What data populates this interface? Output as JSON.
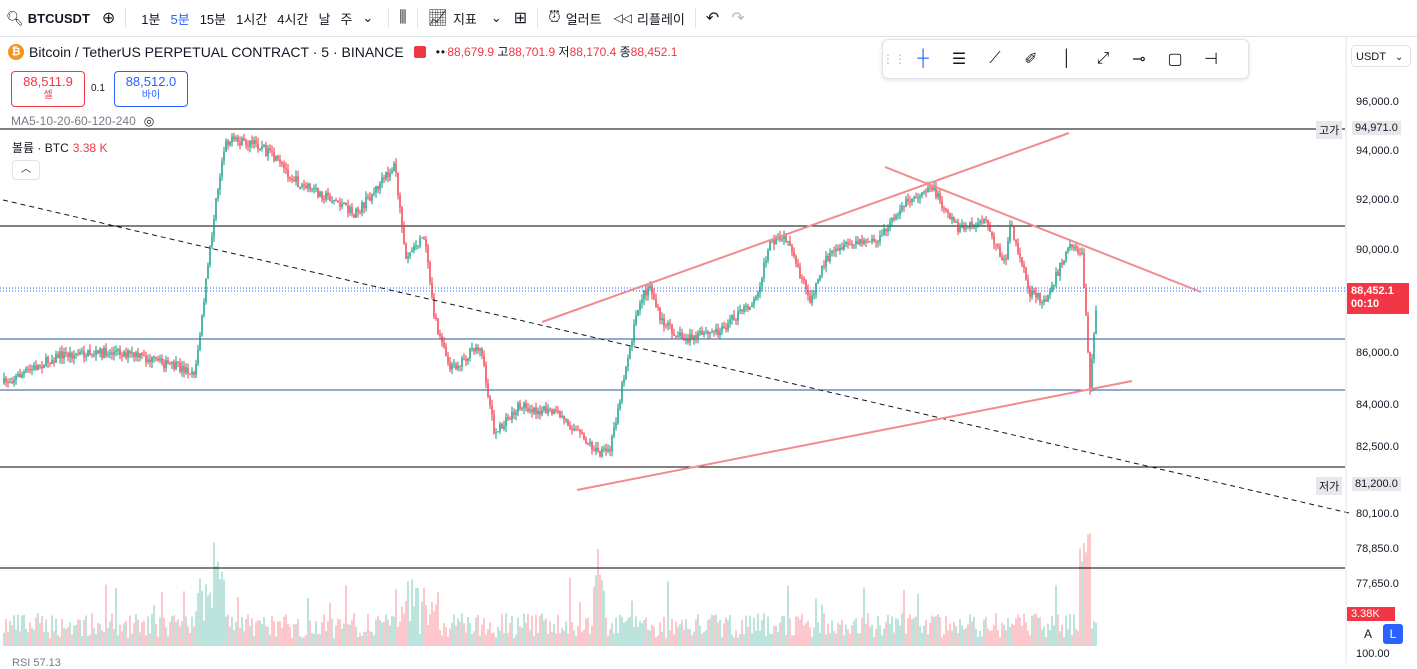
{
  "toolbar": {
    "symbol": "BTCUSDT",
    "intervals": [
      "1분",
      "5분",
      "15분",
      "1시간",
      "4시간",
      "날",
      "주"
    ],
    "active_interval": "5분",
    "indicators_label": "지표",
    "alerts_label": "얼러트",
    "replay_label": "리플레이"
  },
  "legend": {
    "title": "Bitcoin / TetherUS PERPETUAL CONTRACT · 5 · BINANCE",
    "logo_letter": "₿",
    "dots": "•••",
    "open": "88,679.9",
    "high_label": "고",
    "high": "88,701.9",
    "low_label": "저",
    "low": "88,170.4",
    "close_label": "종",
    "close": "88,452.1"
  },
  "trade": {
    "sell_price": "88,511.9",
    "sell_label": "셀",
    "spread": "0.1",
    "buy_price": "88,512.0",
    "buy_label": "바이"
  },
  "ma_label": "MA5-10-20-60-120-240",
  "volume": {
    "label": "볼륨 · BTC",
    "value": "3.38 K"
  },
  "currency": "USDT",
  "price_axis": [
    "96,000.0",
    "94,000.0",
    "92,000.0",
    "90,000.0",
    "86,000.0",
    "84,000.0",
    "82,500.0",
    "80,100.0",
    "78,850.0",
    "77,650.0",
    "100.00"
  ],
  "high_tag": {
    "label": "고가",
    "value": "94,971.0"
  },
  "low_tag": {
    "label": "저가",
    "value": "81,200.0"
  },
  "last_price": {
    "value": "88,452.1",
    "countdown": "00:10"
  },
  "vol_tag": "3.38K",
  "scale_buttons": {
    "auto": "A",
    "log": "L"
  },
  "rsi_label": "RSI 57.13",
  "colors": {
    "up": "#089981",
    "down": "#f23645",
    "accent": "#2962ff",
    "trend": "#f28b8f"
  }
}
